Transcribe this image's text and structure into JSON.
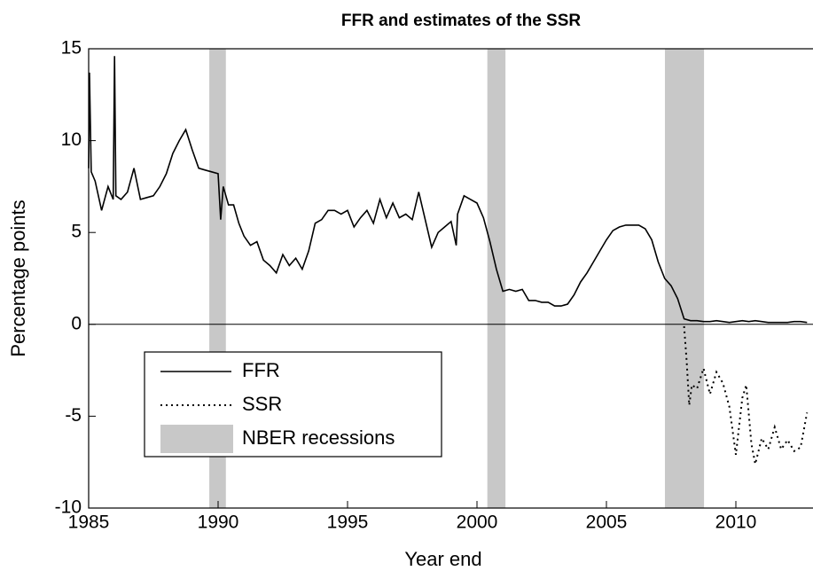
{
  "chart_data": {
    "type": "line",
    "title": "FFR and estimates of the SSR",
    "x_label": "Year end",
    "y_label": "Percentage points",
    "xlim": [
      1985,
      2013
    ],
    "ylim": [
      -10,
      15
    ],
    "xticks": [
      1985,
      1990,
      1995,
      2000,
      2005,
      2010
    ],
    "yticks": [
      -10,
      -5,
      0,
      5,
      10,
      15
    ],
    "zero_line": true,
    "recessions": {
      "name": "NBER recessions",
      "color": "#c8c8c8",
      "spans": [
        [
          1989.66,
          1990.3
        ],
        [
          2000.4,
          2001.1
        ],
        [
          2007.26,
          2008.77
        ]
      ]
    },
    "series": [
      {
        "name": "FFR",
        "color": "#000000",
        "dash": "solid",
        "x": [
          1985.0,
          1985.03,
          1985.1,
          1985.25,
          1985.5,
          1985.75,
          1985.95,
          1986.0,
          1986.05,
          1986.25,
          1986.5,
          1986.75,
          1987.0,
          1987.25,
          1987.5,
          1987.75,
          1988.0,
          1988.25,
          1988.5,
          1988.75,
          1989.0,
          1989.25,
          1989.5,
          1989.75,
          1990.0,
          1990.1,
          1990.2,
          1990.4,
          1990.6,
          1990.8,
          1991.0,
          1991.25,
          1991.5,
          1991.75,
          1992.0,
          1992.25,
          1992.5,
          1992.75,
          1993.0,
          1993.25,
          1993.5,
          1993.75,
          1994.0,
          1994.25,
          1994.5,
          1994.75,
          1995.0,
          1995.25,
          1995.5,
          1995.75,
          1996.0,
          1996.25,
          1996.5,
          1996.75,
          1997.0,
          1997.25,
          1997.5,
          1997.75,
          1998.0,
          1998.25,
          1998.5,
          1998.75,
          1999.0,
          1999.2,
          1999.25,
          1999.5,
          1999.75,
          2000.0,
          2000.25,
          2000.5,
          2000.75,
          2001.0,
          2001.25,
          2001.5,
          2001.75,
          2002.0,
          2002.25,
          2002.5,
          2002.75,
          2003.0,
          2003.25,
          2003.5,
          2003.75,
          2004.0,
          2004.25,
          2004.5,
          2004.75,
          2005.0,
          2005.25,
          2005.5,
          2005.75,
          2006.0,
          2006.25,
          2006.5,
          2006.75,
          2007.0,
          2007.25,
          2007.5,
          2007.75,
          2008.0,
          2008.25,
          2008.5,
          2008.75,
          2009.0,
          2009.25,
          2009.5,
          2009.75,
          2010.0,
          2010.25,
          2010.5,
          2010.75,
          2011.0,
          2011.25,
          2011.5,
          2011.75,
          2012.0,
          2012.25,
          2012.5,
          2012.75
        ],
        "values": [
          8.5,
          13.7,
          8.3,
          7.8,
          6.2,
          7.5,
          6.8,
          14.6,
          7.0,
          6.8,
          7.2,
          8.5,
          6.8,
          6.9,
          7.0,
          7.5,
          8.2,
          9.3,
          10.0,
          10.6,
          9.5,
          8.5,
          8.4,
          8.3,
          8.2,
          5.7,
          7.5,
          6.5,
          6.5,
          5.5,
          4.8,
          4.3,
          4.5,
          3.5,
          3.2,
          2.8,
          3.8,
          3.2,
          3.6,
          3.0,
          4.0,
          5.5,
          5.7,
          6.2,
          6.2,
          6.0,
          6.2,
          5.3,
          5.8,
          6.2,
          5.5,
          6.8,
          5.8,
          6.6,
          5.8,
          6.0,
          5.7,
          7.2,
          5.7,
          4.2,
          5.0,
          5.3,
          5.6,
          4.3,
          6.0,
          7.0,
          6.8,
          6.6,
          5.8,
          4.5,
          3.0,
          1.8,
          1.9,
          1.8,
          1.9,
          1.3,
          1.3,
          1.2,
          1.2,
          1.0,
          1.0,
          1.1,
          1.6,
          2.3,
          2.8,
          3.4,
          4.0,
          4.6,
          5.1,
          5.3,
          5.4,
          5.4,
          5.4,
          5.2,
          4.6,
          3.4,
          2.5,
          2.1,
          1.4,
          0.3,
          0.2,
          0.2,
          0.15,
          0.15,
          0.2,
          0.15,
          0.1,
          0.15,
          0.2,
          0.15,
          0.2,
          0.15,
          0.1,
          0.1,
          0.1,
          0.1,
          0.15,
          0.15,
          0.1
        ]
      },
      {
        "name": "SSR",
        "color": "#000000",
        "dash": "dotted",
        "x": [
          2008.0,
          2008.1,
          2008.2,
          2008.3,
          2008.5,
          2008.75,
          2009.0,
          2009.25,
          2009.5,
          2009.75,
          2010.0,
          2010.25,
          2010.4,
          2010.6,
          2010.75,
          2011.0,
          2011.25,
          2011.5,
          2011.75,
          2012.0,
          2012.25,
          2012.5,
          2012.75
        ],
        "values": [
          -0.1,
          -2.0,
          -4.4,
          -3.3,
          -3.5,
          -2.4,
          -3.8,
          -2.6,
          -3.2,
          -4.5,
          -7.1,
          -4.0,
          -3.3,
          -6.5,
          -7.6,
          -6.2,
          -6.8,
          -5.6,
          -6.8,
          -6.3,
          -6.9,
          -6.7,
          -4.8
        ]
      }
    ]
  }
}
